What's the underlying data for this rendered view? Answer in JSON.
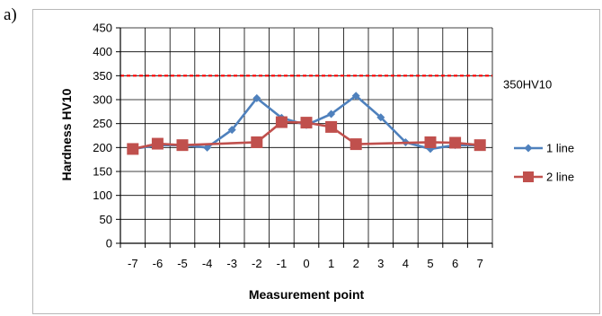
{
  "panel_label": "a)",
  "chart_data": {
    "type": "line",
    "title": "",
    "xlabel": "Measurement point",
    "ylabel": "Hardness HV10",
    "x": [
      -7,
      -6,
      -5,
      -4,
      -3,
      -2,
      -1,
      0,
      1,
      2,
      3,
      4,
      5,
      6,
      7
    ],
    "ylim": [
      0,
      450
    ],
    "yticks": [
      0,
      50,
      100,
      150,
      200,
      250,
      300,
      350,
      400,
      450
    ],
    "grid": true,
    "legend_position": "right",
    "reference_line": {
      "y": 350,
      "label": "350HV10",
      "color": "#ff0000",
      "style": "dashed"
    },
    "series": [
      {
        "name": "1 line",
        "color": "#4f81bd",
        "marker": "diamond",
        "x": [
          -7,
          -6,
          -5,
          -4,
          -3,
          -2,
          -1,
          0,
          1,
          2,
          3,
          4,
          5,
          6,
          7
        ],
        "values": [
          197,
          205,
          205,
          200,
          237,
          303,
          262,
          247,
          270,
          308,
          263,
          211,
          197,
          205,
          205
        ]
      },
      {
        "name": "2 line",
        "color": "#c0504d",
        "marker": "square",
        "x": [
          -7,
          -6,
          -5,
          -2,
          -1,
          0,
          1,
          2,
          5,
          6,
          7
        ],
        "values": [
          197,
          208,
          205,
          211,
          253,
          252,
          243,
          207,
          211,
          210,
          205
        ]
      }
    ]
  }
}
